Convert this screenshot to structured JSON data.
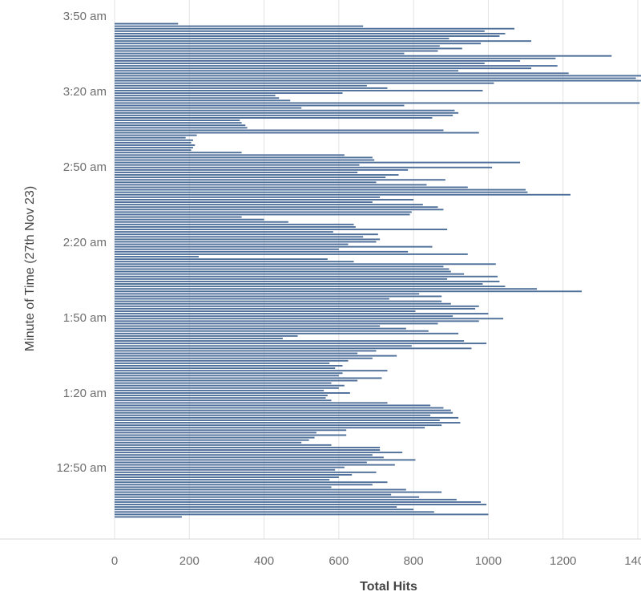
{
  "chart_data": {
    "type": "bar",
    "orientation": "horizontal",
    "xlabel": "Total Hits",
    "ylabel": "Minute of Time (27th Nov 23)",
    "xlim": [
      0,
      1480
    ],
    "x_ticks": [
      0,
      200,
      400,
      600,
      800,
      1000,
      1200,
      1400
    ],
    "y_ticks": [
      "3:50 am",
      "3:20 am",
      "2:50 am",
      "2:20 am",
      "1:50 am",
      "1:20 am",
      "12:50 am"
    ],
    "grid": "vertical",
    "colors": {
      "bar": "#4e6f99",
      "grid": "#e3e3e3",
      "axis_text": "#6e6e6e"
    },
    "series": [
      {
        "values": [
          170,
          665,
          1070,
          990,
          1045,
          1030,
          895,
          1115,
          980,
          870,
          930,
          865,
          775,
          1330,
          1180,
          1085,
          990,
          1185,
          1115,
          920,
          1215,
          1410,
          1395,
          1475,
          1015,
          675,
          730,
          985,
          610,
          430,
          440,
          470,
          1405,
          775,
          500,
          910,
          920,
          905,
          850,
          335,
          340,
          350,
          355,
          880,
          975,
          220,
          190,
          210,
          205,
          215,
          210,
          205,
          340,
          615,
          690,
          695,
          1085,
          655,
          1010,
          785,
          650,
          760,
          725,
          885,
          700,
          835,
          945,
          1100,
          1105,
          1220,
          710,
          800,
          690,
          825,
          865,
          880,
          795,
          790,
          340,
          400,
          465,
          640,
          645,
          890,
          585,
          705,
          665,
          710,
          700,
          625,
          850,
          600,
          785,
          945,
          225,
          570,
          640,
          1020,
          880,
          895,
          900,
          935,
          1025,
          890,
          1030,
          985,
          1045,
          1130,
          1250,
          815,
          875,
          735,
          875,
          900,
          975,
          965,
          805,
          1000,
          905,
          1040,
          975,
          865,
          710,
          780,
          840,
          920,
          490,
          450,
          935,
          995,
          795,
          955,
          700,
          650,
          755,
          690,
          625,
          575,
          610,
          590,
          730,
          610,
          600,
          715,
          650,
          580,
          615,
          600,
          560,
          630,
          570,
          565,
          580,
          730,
          845,
          880,
          900,
          905,
          845,
          920,
          870,
          925,
          875,
          830,
          620,
          540,
          620,
          535,
          520,
          500,
          580,
          710,
          710,
          770,
          690,
          720,
          805,
          675,
          750,
          615,
          590,
          700,
          635,
          600,
          575,
          730,
          690,
          580,
          780,
          875,
          740,
          815,
          915,
          980,
          995,
          755,
          800,
          855,
          1000,
          180
        ]
      }
    ]
  }
}
